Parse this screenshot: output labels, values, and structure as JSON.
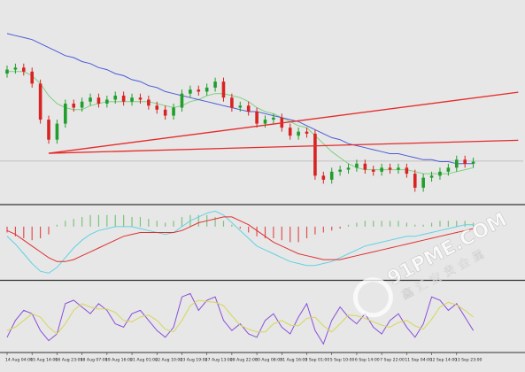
{
  "chart_data": [
    {
      "type": "candlestick",
      "xlim": [
        0,
        62
      ],
      "ylim": [
        0,
        100
      ],
      "up_color": "#1f9e2c",
      "down_color": "#d92323",
      "open": [
        65,
        67,
        68,
        66,
        60,
        42,
        32,
        40,
        50,
        48,
        51,
        53,
        50,
        52,
        54,
        51,
        53,
        52,
        49,
        47,
        44,
        48,
        55,
        57,
        56,
        58,
        61,
        53,
        48,
        49,
        46,
        40,
        42,
        43,
        38,
        34,
        36,
        35,
        14,
        12,
        16,
        17,
        18,
        20,
        17,
        16,
        18,
        17,
        18,
        15,
        8,
        13,
        14,
        16,
        18,
        22,
        20
      ],
      "high": [
        69,
        70,
        70,
        68,
        62,
        44,
        42,
        52,
        52,
        53,
        55,
        55,
        54,
        56,
        56,
        55,
        55,
        54,
        51,
        49,
        50,
        57,
        59,
        59,
        60,
        63,
        63,
        55,
        51,
        51,
        48,
        44,
        45,
        45,
        40,
        38,
        38,
        37,
        16,
        18,
        19,
        20,
        22,
        22,
        19,
        20,
        20,
        20,
        20,
        17,
        15,
        16,
        18,
        20,
        24,
        24,
        23
      ],
      "low": [
        63,
        65,
        64,
        58,
        40,
        30,
        30,
        38,
        46,
        46,
        49,
        48,
        48,
        50,
        49,
        49,
        50,
        47,
        45,
        42,
        42,
        46,
        53,
        54,
        54,
        56,
        51,
        46,
        46,
        44,
        38,
        38,
        40,
        36,
        32,
        32,
        33,
        12,
        10,
        10,
        14,
        15,
        16,
        15,
        14,
        14,
        15,
        15,
        13,
        6,
        6,
        11,
        12,
        14,
        16,
        18,
        18
      ],
      "close": [
        67,
        68,
        66,
        60,
        42,
        32,
        40,
        50,
        48,
        51,
        53,
        50,
        52,
        54,
        51,
        53,
        52,
        49,
        47,
        44,
        48,
        55,
        57,
        56,
        58,
        61,
        53,
        48,
        49,
        46,
        40,
        42,
        43,
        38,
        34,
        36,
        35,
        14,
        12,
        16,
        17,
        18,
        20,
        17,
        16,
        18,
        17,
        18,
        15,
        8,
        13,
        14,
        16,
        18,
        22,
        20,
        21
      ],
      "series": [
        {
          "color": "#7fd07f",
          "values": [
            66,
            66,
            66,
            64,
            60,
            54,
            50,
            48,
            47,
            47,
            49,
            50,
            51,
            51,
            51,
            51,
            51,
            51,
            50,
            49,
            48,
            49,
            51,
            52,
            54,
            55,
            55,
            54,
            53,
            51,
            48,
            46,
            45,
            43,
            41,
            39,
            38,
            34,
            30,
            26,
            23,
            20,
            18,
            17,
            17,
            17,
            17,
            17,
            17,
            16,
            15,
            15,
            15,
            15,
            16,
            17,
            18
          ]
        },
        {
          "color": "#4b5bd6",
          "values": [
            85,
            84,
            83,
            82,
            80,
            78,
            76,
            74,
            73,
            71,
            70,
            68,
            67,
            65,
            64,
            62,
            61,
            59,
            58,
            56,
            55,
            54,
            53,
            52,
            51,
            50,
            49,
            48,
            47,
            46,
            46,
            45,
            44,
            43,
            42,
            41,
            39,
            37,
            35,
            33,
            32,
            30,
            29,
            28,
            27,
            26,
            25,
            25,
            24,
            23,
            22,
            22,
            21,
            21,
            20,
            20,
            20
          ]
        }
      ],
      "trendlines": [
        {
          "color": "#e62a2a",
          "start": [
            5,
            25.2
          ],
          "end": [
            61.4,
            55.7
          ]
        },
        {
          "color": "#e62a2a",
          "start": [
            5,
            25.2
          ],
          "end": [
            61.4,
            31.7
          ]
        }
      ],
      "hline": {
        "value": 21.3,
        "color": "#b4b4b4"
      }
    },
    {
      "type": "macd",
      "xlim": [
        0,
        62
      ],
      "ylim": [
        -2.7,
        1
      ],
      "bars": {
        "pos_color": "#7cc47c",
        "neg_color": "#e05050",
        "values": [
          -0.3,
          -0.5,
          -0.6,
          -0.7,
          -0.6,
          -0.4,
          0.1,
          0.3,
          0.4,
          0.5,
          0.6,
          0.6,
          0.6,
          0.6,
          0.6,
          0.5,
          0.5,
          0.4,
          0.3,
          0.2,
          0.3,
          0.5,
          0.6,
          0.6,
          0.6,
          0.5,
          0.3,
          0.1,
          -0.1,
          -0.3,
          -0.5,
          -0.6,
          -0.6,
          -0.7,
          -0.8,
          -0.8,
          -0.6,
          -0.4,
          -0.3,
          -0.2,
          -0.1,
          0.1,
          0.2,
          0.3,
          0.3,
          0.3,
          0.3,
          0.3,
          0.2,
          0.1,
          0.1,
          0.2,
          0.3,
          0.3,
          0.3,
          0.3,
          0.2
        ]
      },
      "series": [
        {
          "color": "#5fd3e3",
          "values": [
            -0.5,
            -0.9,
            -1.4,
            -1.9,
            -2.3,
            -2.4,
            -2.1,
            -1.6,
            -1.1,
            -0.7,
            -0.4,
            -0.2,
            -0.1,
            0,
            0,
            0,
            -0.1,
            -0.2,
            -0.3,
            -0.4,
            -0.3,
            0,
            0.3,
            0.5,
            0.7,
            0.8,
            0.6,
            0.2,
            -0.2,
            -0.6,
            -1,
            -1.2,
            -1.4,
            -1.6,
            -1.8,
            -1.9,
            -2,
            -2,
            -1.9,
            -1.8,
            -1.6,
            -1.4,
            -1.2,
            -1,
            -0.9,
            -0.8,
            -0.7,
            -0.6,
            -0.5,
            -0.5,
            -0.4,
            -0.3,
            -0.2,
            -0.1,
            0,
            0.1,
            0.1
          ]
        },
        {
          "color": "#e03030",
          "values": [
            -0.2,
            -0.4,
            -0.7,
            -1,
            -1.3,
            -1.6,
            -1.8,
            -1.8,
            -1.7,
            -1.5,
            -1.3,
            -1.1,
            -0.9,
            -0.7,
            -0.5,
            -0.4,
            -0.3,
            -0.3,
            -0.3,
            -0.3,
            -0.3,
            -0.2,
            0,
            0.2,
            0.3,
            0.4,
            0.5,
            0.5,
            0.3,
            0.1,
            -0.2,
            -0.5,
            -0.8,
            -1,
            -1.2,
            -1.4,
            -1.5,
            -1.6,
            -1.7,
            -1.7,
            -1.7,
            -1.6,
            -1.5,
            -1.4,
            -1.3,
            -1.2,
            -1.1,
            -1,
            -0.9,
            -0.8,
            -0.7,
            -0.6,
            -0.5,
            -0.4,
            -0.3,
            -0.2,
            -0.1
          ]
        }
      ]
    },
    {
      "type": "line",
      "xlim": [
        0,
        62
      ],
      "ylim": [
        0,
        100
      ],
      "xticks": [
        {
          "value": 0,
          "label": "14 Aug 04:00"
        },
        {
          "value": 3,
          "label": "15 Aug 14:00"
        },
        {
          "value": 6,
          "label": "16 Aug 23:00"
        },
        {
          "value": 9,
          "label": "18 Aug 07:00"
        },
        {
          "value": 12,
          "label": "19 Aug 16:00"
        },
        {
          "value": 15,
          "label": "21 Aug 01:00"
        },
        {
          "value": 18,
          "label": "22 Aug 10:00"
        },
        {
          "value": 21,
          "label": "23 Aug 19:00"
        },
        {
          "value": 24,
          "label": "27 Aug 13:00"
        },
        {
          "value": 27,
          "label": "28 Aug 22:00"
        },
        {
          "value": 30,
          "label": "30 Aug 08:00"
        },
        {
          "value": 33,
          "label": "31 Aug 16:00"
        },
        {
          "value": 36,
          "label": "3 Sep 01:00"
        },
        {
          "value": 39,
          "label": "5 Sep 10:00"
        },
        {
          "value": 42,
          "label": "6 Sep 14:00"
        },
        {
          "value": 45,
          "label": "7 Sep 22:00"
        },
        {
          "value": 48,
          "label": "11 Sep 04:00"
        },
        {
          "value": 51,
          "label": "12 Sep 14:00"
        },
        {
          "value": 54,
          "label": "13 Sep 23:00"
        }
      ],
      "series": [
        {
          "color": "#8a4fd8",
          "values": [
            20,
            45,
            60,
            55,
            30,
            15,
            25,
            70,
            75,
            65,
            55,
            70,
            60,
            40,
            35,
            55,
            60,
            45,
            30,
            20,
            35,
            80,
            85,
            60,
            75,
            80,
            45,
            30,
            40,
            25,
            20,
            45,
            55,
            35,
            25,
            50,
            70,
            30,
            10,
            45,
            65,
            50,
            40,
            55,
            35,
            25,
            45,
            55,
            35,
            20,
            40,
            80,
            75,
            60,
            70,
            50,
            30
          ]
        },
        {
          "color": "#d6d65a",
          "values": [
            30,
            35,
            45,
            55,
            50,
            35,
            25,
            40,
            60,
            70,
            65,
            62,
            62,
            57,
            45,
            43,
            50,
            53,
            45,
            32,
            28,
            45,
            67,
            75,
            73,
            72,
            67,
            52,
            38,
            32,
            28,
            28,
            40,
            45,
            38,
            37,
            48,
            50,
            37,
            28,
            40,
            53,
            52,
            48,
            43,
            38,
            35,
            42,
            45,
            37,
            32,
            47,
            65,
            72,
            68,
            60,
            50
          ]
        }
      ]
    }
  ],
  "watermark": {
    "text": "91PME.COM",
    "subtext": "鑫汇宝贵金属"
  }
}
